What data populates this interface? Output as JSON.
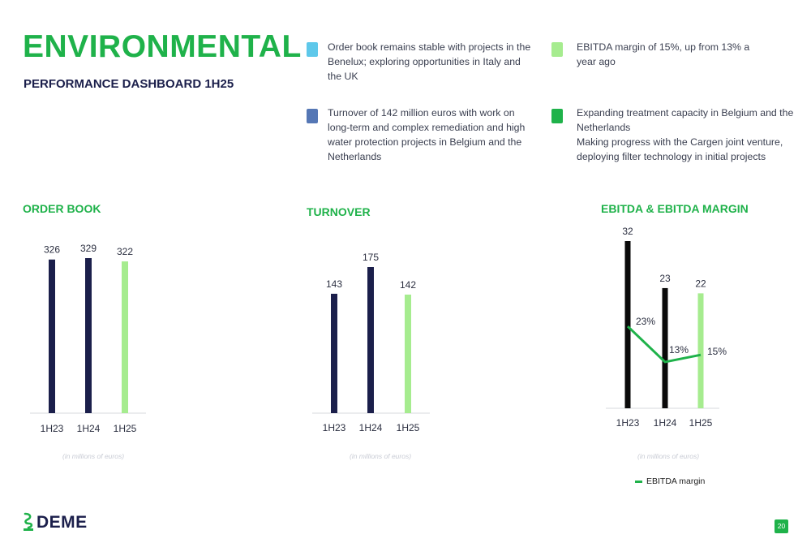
{
  "header": {
    "title": "ENVIRONMENTAL",
    "subtitle": "PERFORMANCE DASHBOARD 1H25"
  },
  "bullets": [
    {
      "color": "#5ec8ea",
      "text": "Order book remains stable with projects in the Benelux; exploring opportunities in Italy and the UK"
    },
    {
      "color": "#5577b5",
      "text": "Turnover of 142 million euros with work on long-term and complex remediation and high water protection projects in Belgium and the Netherlands"
    },
    {
      "color": "#a6ec8f",
      "text": "EBITDA margin of 15%, up from 13% a year ago"
    },
    {
      "color": "#1fb24a",
      "text": "Expanding treatment capacity in Belgium and the Netherlands",
      "text2": "Making progress with the Cargen joint venture, deploying filter technology in initial projects"
    }
  ],
  "colors": {
    "accent": "#1fb24a",
    "navy": "#1b1f4b",
    "highlight": "#a6ec8f",
    "black": "#0a0a0a"
  },
  "chart_data": [
    {
      "type": "bar",
      "title": "ORDER BOOK",
      "categories": [
        "1H23",
        "1H24",
        "1H25"
      ],
      "values": [
        326,
        329,
        322
      ],
      "value_labels": [
        "326",
        "329",
        "322"
      ],
      "bar_colors": [
        "#1b1f4b",
        "#1b1f4b",
        "#a6ec8f"
      ],
      "footnote": "(in millions of euros)",
      "ylim": [
        0,
        329
      ]
    },
    {
      "type": "bar",
      "title": "TURNOVER",
      "categories": [
        "1H23",
        "1H24",
        "1H25"
      ],
      "values": [
        143,
        175,
        142
      ],
      "value_labels": [
        "143",
        "175",
        "142"
      ],
      "bar_colors": [
        "#1b1f4b",
        "#1b1f4b",
        "#a6ec8f"
      ],
      "footnote": "(in millions of euros)",
      "ylim": [
        0,
        175
      ]
    },
    {
      "type": "bar",
      "title": "EBITDA & EBITDA MARGIN",
      "categories": [
        "1H23",
        "1H24",
        "1H25"
      ],
      "values": [
        32,
        23,
        22
      ],
      "value_labels": [
        "32",
        "23",
        "22"
      ],
      "bar_colors": [
        "#0a0a0a",
        "#0a0a0a",
        "#a6ec8f"
      ],
      "ylim": [
        0,
        32
      ],
      "line_series": {
        "name": "EBITDA margin",
        "values": [
          23,
          13,
          15
        ],
        "labels": [
          "23%",
          "13%",
          "15%"
        ],
        "color": "#1fb24a"
      },
      "footnote": "(in millions of euros)",
      "legend": "EBITDA margin"
    }
  ],
  "footer": {
    "logo_text": "DEME",
    "page_number": "20"
  }
}
